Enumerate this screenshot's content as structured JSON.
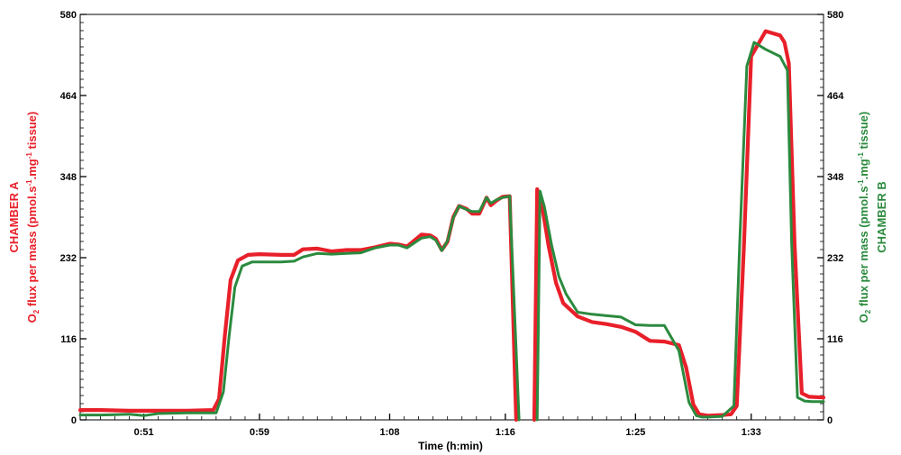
{
  "chart_data": {
    "type": "line",
    "xlabel": "Time (h:min)",
    "ylabel_left": {
      "line1": "CHAMBER A",
      "prefix": "O",
      "sub": "2",
      "mid": " flux per mass  (pmol.s",
      "sup1": "-1",
      "mid2": ".mg",
      "sup2": "-1",
      "end": " tissue)"
    },
    "ylabel_right": {
      "line2": "CHAMBER B",
      "prefix": "O",
      "sub": "2",
      "mid": " flux per mass  (pmol.s",
      "sup1": "-1",
      "mid2": ".mg",
      "sup2": "-1",
      "end": " tissue)"
    },
    "x_ticks": [
      "0:51",
      "0:59",
      "1:08",
      "1:16",
      "1:25",
      "1:33"
    ],
    "x_tick_minutes": [
      51,
      59,
      68,
      76,
      85,
      93
    ],
    "xlim_minutes": [
      46.6,
      98.0
    ],
    "y_ticks": [
      "0",
      "116",
      "232",
      "348",
      "464",
      "580"
    ],
    "ylim": [
      0,
      580
    ],
    "colors": {
      "chamber_a": "#e8202a",
      "chamber_b": "#2b8a3e",
      "left_label": "#e8202a",
      "right_label": "#2b8a3e"
    },
    "series": [
      {
        "name": "CHAMBER A",
        "color": "#e8202a",
        "x": [
          46.6,
          48.0,
          50.0,
          52.0,
          54.0,
          55.8,
          56.2,
          56.6,
          57.0,
          57.5,
          58.2,
          59.0,
          60.5,
          61.4,
          62.0,
          63.0,
          64.0,
          65.0,
          66.0,
          67.0,
          68.0,
          68.6,
          69.2,
          70.2,
          70.8,
          71.2,
          71.6,
          72.0,
          72.4,
          72.8,
          73.3,
          73.7,
          74.2,
          74.7,
          75.0,
          75.4,
          75.8,
          76.3,
          76.75,
          null,
          78.0,
          78.2,
          78.5,
          79.0,
          79.5,
          80.0,
          81.0,
          82.0,
          83.0,
          84.0,
          85.0,
          86.0,
          87.0,
          88.0,
          88.5,
          89.0,
          89.4,
          90.0,
          91.0,
          91.6,
          92.0,
          92.5,
          93.0,
          94.0,
          95.0,
          95.3,
          95.6,
          96.0,
          96.5,
          97.0,
          98.0
        ],
        "y": [
          14,
          14,
          13,
          13,
          13,
          14,
          30,
          120,
          200,
          228,
          236,
          237,
          236,
          236,
          244,
          245,
          241,
          243,
          243,
          247,
          252,
          251,
          248,
          265,
          264,
          259,
          243,
          255,
          290,
          306,
          302,
          295,
          295,
          318,
          307,
          314,
          319,
          320,
          0,
          null,
          0,
          330,
          311,
          248,
          196,
          167,
          148,
          140,
          137,
          133,
          126,
          113,
          112,
          107,
          75,
          22,
          8,
          6,
          7,
          8,
          20,
          250,
          520,
          556,
          550,
          540,
          510,
          250,
          38,
          33,
          32
        ]
      },
      {
        "name": "CHAMBER B",
        "color": "#2b8a3e",
        "x": [
          46.6,
          48.0,
          50.0,
          51.0,
          52.0,
          54.0,
          56.0,
          56.5,
          56.9,
          57.3,
          57.8,
          58.5,
          59.0,
          60.5,
          61.4,
          62.0,
          63.0,
          64.0,
          65.0,
          66.0,
          67.0,
          68.0,
          68.6,
          69.2,
          70.2,
          70.8,
          71.2,
          71.6,
          72.0,
          72.4,
          72.8,
          73.3,
          73.7,
          74.2,
          74.7,
          75.0,
          75.4,
          75.8,
          76.3,
          76.95,
          null,
          78.2,
          78.4,
          78.7,
          79.2,
          79.7,
          80.2,
          81.0,
          82.0,
          83.0,
          84.0,
          85.0,
          86.0,
          87.0,
          88.0,
          88.7,
          89.2,
          89.6,
          90.0,
          91.0,
          91.8,
          92.2,
          92.7,
          93.2,
          94.0,
          95.0,
          95.5,
          95.8,
          96.2,
          96.7,
          97.2,
          98.0
        ],
        "y": [
          7,
          7,
          8,
          6,
          9,
          10,
          10,
          40,
          120,
          190,
          220,
          226,
          226,
          226,
          227,
          233,
          238,
          237,
          238,
          239,
          246,
          250,
          250,
          246,
          260,
          262,
          257,
          242,
          256,
          289,
          306,
          301,
          298,
          298,
          318,
          310,
          315,
          318,
          320,
          0,
          null,
          0,
          327,
          305,
          250,
          205,
          180,
          154,
          151,
          149,
          147,
          136,
          135,
          135,
          99,
          25,
          6,
          4,
          4,
          5,
          20,
          250,
          506,
          540,
          530,
          520,
          500,
          250,
          32,
          27,
          26,
          26
        ]
      }
    ]
  }
}
